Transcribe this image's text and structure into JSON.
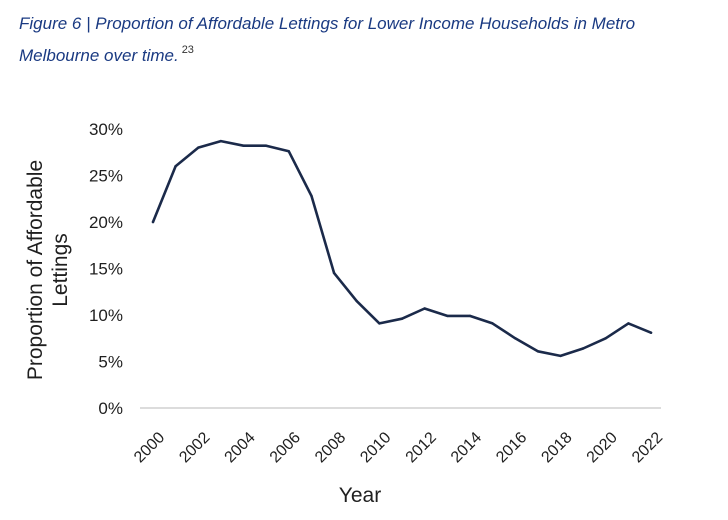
{
  "caption": {
    "title": "Figure 6 | Proportion of Affordable Lettings for Lower Income Households in Metro Melbourne over time.",
    "footnote": "23"
  },
  "chart_data": {
    "type": "line",
    "title": "Figure 6 | Proportion of Affordable Lettings for Lower Income Households in Metro Melbourne over time.",
    "xlabel": "Year",
    "ylabel": [
      "Proportion of Affordable",
      "Lettings"
    ],
    "x": [
      2000,
      2001,
      2002,
      2003,
      2004,
      2005,
      2006,
      2007,
      2008,
      2009,
      2010,
      2011,
      2012,
      2013,
      2014,
      2015,
      2016,
      2017,
      2018,
      2019,
      2020,
      2021,
      2022
    ],
    "values": [
      20,
      26,
      28,
      28.7,
      28.2,
      28.2,
      27.6,
      22.8,
      14.5,
      11.5,
      9.1,
      9.6,
      10.7,
      9.9,
      9.9,
      9.1,
      7.5,
      6.1,
      5.6,
      6.4,
      7.5,
      9.1,
      8.1
    ],
    "xticks": [
      "2000",
      "2002",
      "2004",
      "2006",
      "2008",
      "2010",
      "2012",
      "2014",
      "2016",
      "2018",
      "2020",
      "2022"
    ],
    "yticks": [
      "0%",
      "5%",
      "10%",
      "15%",
      "20%",
      "25%",
      "30%"
    ],
    "ylim": [
      0,
      30
    ],
    "xlim": [
      2000,
      2022
    ],
    "line_color": "#1b2a4a",
    "grid": false,
    "legend": "none"
  }
}
